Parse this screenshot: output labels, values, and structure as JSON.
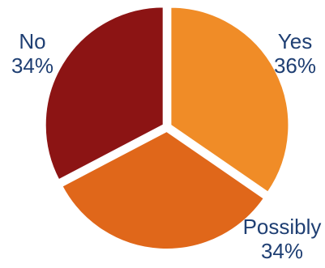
{
  "chart_data": {
    "type": "pie",
    "slices": [
      {
        "label": "Yes",
        "value": 36,
        "value_label": "36%",
        "color": "#f08c27"
      },
      {
        "label": "Possibly",
        "value": 34,
        "value_label": "34%",
        "color": "#e0671a"
      },
      {
        "label": "No",
        "value": 34,
        "value_label": "34%",
        "color": "#8c1414"
      }
    ],
    "start": "12 o'clock",
    "direction": "clockwise",
    "exploded": true
  },
  "colors": {
    "label_text": "#1f3f73",
    "separator": "#ffffff"
  }
}
